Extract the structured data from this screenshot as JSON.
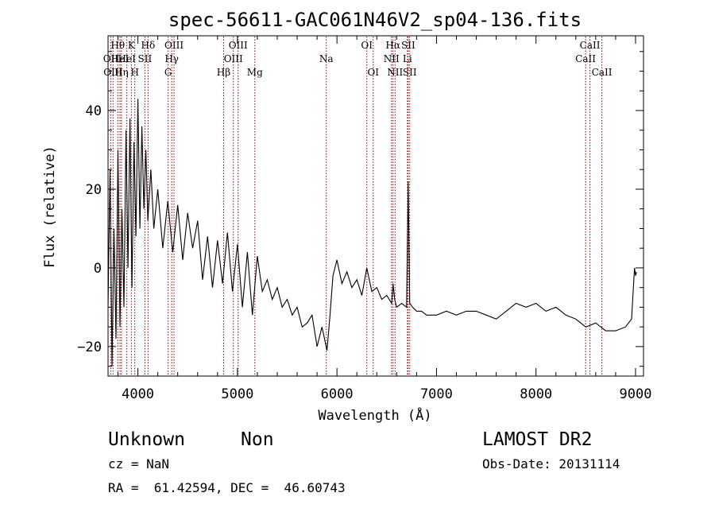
{
  "chart_data": {
    "type": "line",
    "title": "spec-56611-GAC061N46V2_sp04-136.fits",
    "xlabel": "Wavelength (Å)",
    "ylabel": "Flux (relative)",
    "xlim": [
      3700,
      9080
    ],
    "ylim": [
      -27.5,
      59
    ],
    "x_ticks": [
      4000,
      5000,
      6000,
      7000,
      8000,
      9000
    ],
    "y_ticks": [
      -20,
      0,
      20,
      40
    ],
    "grid": false,
    "legend": "none",
    "colors": {
      "spectrum": "#000000",
      "lines": "#8b0000"
    },
    "series": [
      {
        "x": [
          3700,
          3720,
          3740,
          3760,
          3780,
          3800,
          3820,
          3840,
          3860,
          3880,
          3900,
          3920,
          3940,
          3960,
          3980,
          4000,
          4020,
          4040,
          4060,
          4080,
          4100,
          4130,
          4160,
          4200,
          4250,
          4300,
          4350,
          4400,
          4450,
          4500,
          4550,
          4600,
          4650,
          4700,
          4750,
          4800,
          4850,
          4900,
          4950,
          5000,
          5050,
          5100,
          5150,
          5200,
          5250,
          5300,
          5350,
          5400,
          5450,
          5500,
          5550,
          5600,
          5650,
          5700,
          5750,
          5800,
          5850,
          5900,
          5930,
          5960,
          6000,
          6050,
          6100,
          6150,
          6200,
          6250,
          6300,
          6350,
          6400,
          6450,
          6500,
          6550,
          6563,
          6580,
          6600,
          6650,
          6700,
          6716,
          6731,
          6760,
          6800,
          6850,
          6900,
          6950,
          7000,
          7100,
          7200,
          7300,
          7400,
          7500,
          7600,
          7700,
          7800,
          7900,
          8000,
          8100,
          8200,
          8300,
          8400,
          8500,
          8600,
          8700,
          8800,
          8900,
          8960,
          8990,
          9000,
          9010
        ],
        "y": [
          -10,
          25,
          -25,
          10,
          -18,
          30,
          -15,
          15,
          -10,
          35,
          0,
          38,
          -5,
          32,
          8,
          43,
          10,
          36,
          15,
          30,
          12,
          25,
          10,
          20,
          5,
          17,
          4,
          16,
          2,
          14,
          5,
          12,
          -3,
          8,
          -5,
          7,
          -4,
          9,
          -6,
          6,
          -10,
          4,
          -12,
          3,
          -6,
          -3,
          -8,
          -5,
          -10,
          -8,
          -12,
          -10,
          -15,
          -14,
          -12,
          -20,
          -15,
          -21,
          -12,
          -2,
          2,
          -4,
          -1,
          -5,
          -3,
          -7,
          0,
          -6,
          -5,
          -8,
          -7,
          -9,
          -4,
          -8,
          -10,
          -9,
          -10,
          22,
          -9,
          -10,
          -11,
          -11,
          -12,
          -12,
          -12,
          -11,
          -12,
          -11,
          -11,
          -12,
          -13,
          -11,
          -9,
          -10,
          -9,
          -11,
          -10,
          -12,
          -13,
          -15,
          -14,
          -16,
          -16,
          -15,
          -13,
          0,
          -2,
          -1
        ]
      }
    ],
    "line_ids": [
      {
        "wavelength": 3727,
        "labels": [
          "OII"
        ],
        "rows": [
          1
        ]
      },
      {
        "wavelength": 3750,
        "labels": [
          "OIII"
        ],
        "rows": [
          2
        ]
      },
      {
        "wavelength": 3798,
        "labels": [
          "Hθ"
        ],
        "rows": [
          0
        ]
      },
      {
        "wavelength": 3820,
        "labels": [
          "HeI"
        ],
        "rows": [
          1
        ]
      },
      {
        "wavelength": 3835,
        "labels": [
          "Hη"
        ],
        "rows": [
          2
        ]
      },
      {
        "wavelength": 3889,
        "labels": [
          "HeI"
        ],
        "rows": [
          1
        ]
      },
      {
        "wavelength": 3934,
        "labels": [
          "K"
        ],
        "rows": [
          0
        ]
      },
      {
        "wavelength": 3969,
        "labels": [
          "H"
        ],
        "rows": [
          2
        ]
      },
      {
        "wavelength": 4070,
        "labels": [
          "SII"
        ],
        "rows": [
          1
        ]
      },
      {
        "wavelength": 4102,
        "labels": [
          "Hδ"
        ],
        "rows": [
          0
        ]
      },
      {
        "wavelength": 4304,
        "labels": [
          "G"
        ],
        "rows": [
          2
        ]
      },
      {
        "wavelength": 4340,
        "labels": [
          "Hγ"
        ],
        "rows": [
          1
        ]
      },
      {
        "wavelength": 4363,
        "labels": [
          "OIII"
        ],
        "rows": [
          0
        ]
      },
      {
        "wavelength": 4861,
        "labels": [
          "Hβ"
        ],
        "rows": [
          2
        ]
      },
      {
        "wavelength": 4959,
        "labels": [
          "OIII"
        ],
        "rows": [
          1
        ]
      },
      {
        "wavelength": 5007,
        "labels": [
          "OIII"
        ],
        "rows": [
          0
        ]
      },
      {
        "wavelength": 5175,
        "labels": [
          "Mg"
        ],
        "rows": [
          2
        ]
      },
      {
        "wavelength": 5893,
        "labels": [
          "Na"
        ],
        "rows": [
          1
        ]
      },
      {
        "wavelength": 6300,
        "labels": [
          "OI"
        ],
        "rows": [
          0
        ]
      },
      {
        "wavelength": 6364,
        "labels": [
          "OI"
        ],
        "rows": [
          2
        ]
      },
      {
        "wavelength": 6548,
        "labels": [
          "NII"
        ],
        "rows": [
          1
        ]
      },
      {
        "wavelength": 6563,
        "labels": [
          "Hα"
        ],
        "rows": [
          0
        ]
      },
      {
        "wavelength": 6584,
        "labels": [
          "NII"
        ],
        "rows": [
          2
        ]
      },
      {
        "wavelength": 6708,
        "labels": [
          "Li"
        ],
        "rows": [
          1
        ]
      },
      {
        "wavelength": 6716,
        "labels": [
          "SII"
        ],
        "rows": [
          0
        ]
      },
      {
        "wavelength": 6731,
        "labels": [
          "SII"
        ],
        "rows": [
          2
        ]
      },
      {
        "wavelength": 8498,
        "labels": [
          "CaII"
        ],
        "rows": [
          1
        ]
      },
      {
        "wavelength": 8542,
        "labels": [
          "CaII"
        ],
        "rows": [
          0
        ]
      },
      {
        "wavelength": 8662,
        "labels": [
          "CaII"
        ],
        "rows": [
          2
        ]
      }
    ]
  },
  "info": {
    "object_class": "Unknown",
    "object_subclass": "Non",
    "survey": "LAMOST DR2",
    "redshift": "cz = NaN",
    "obs_date": "Obs-Date: 20131114",
    "coordinates": "RA =  61.42594, DEC =  46.60743"
  }
}
